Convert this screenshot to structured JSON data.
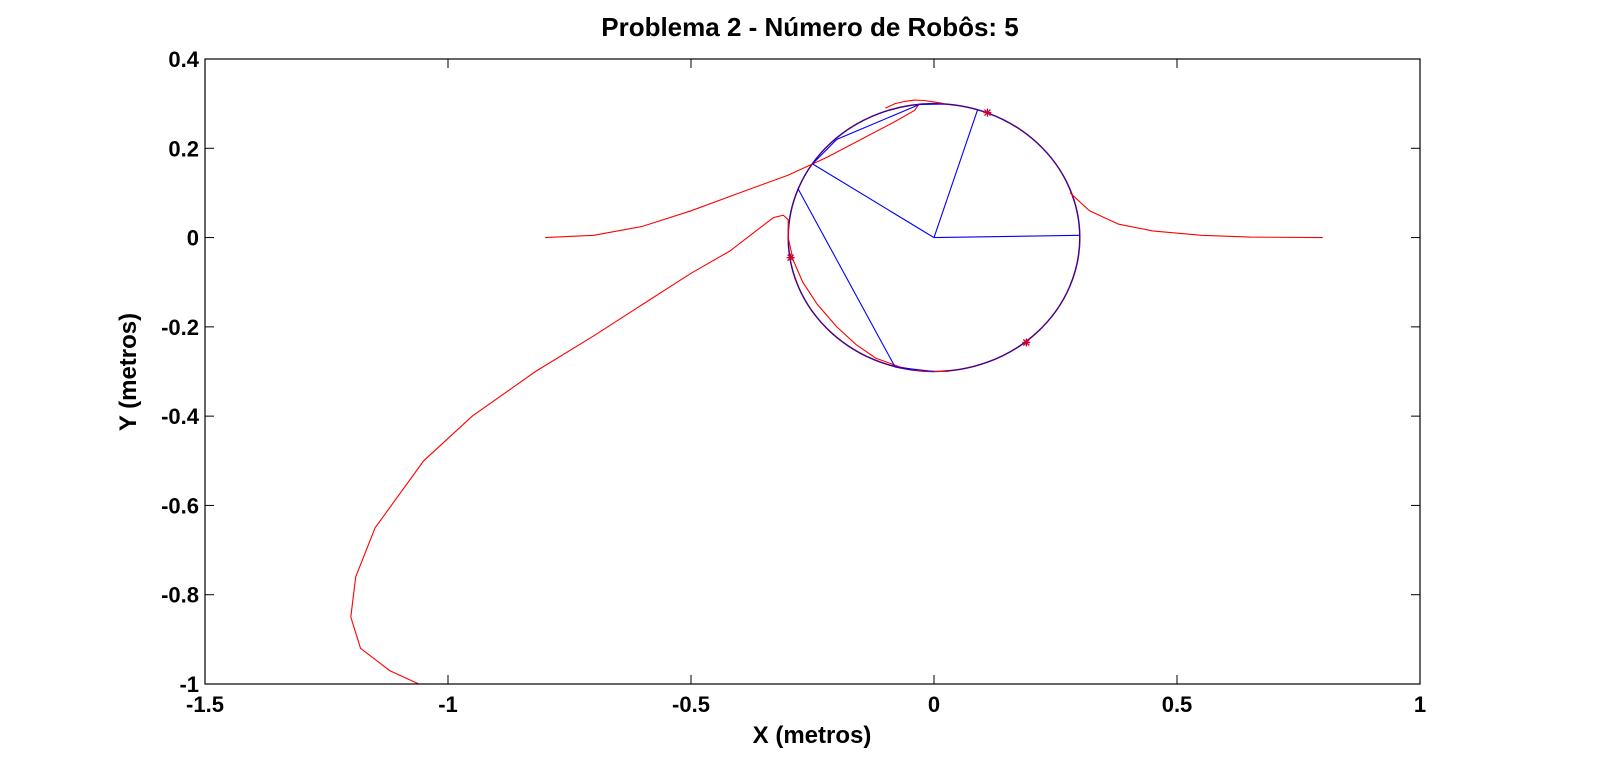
{
  "chart_data": {
    "type": "line",
    "title": "Problema 2 - Número de Robôs: 5",
    "xlabel": "X (metros)",
    "ylabel": "Y (metros)",
    "xlim": [
      -1.5,
      1
    ],
    "ylim": [
      -1,
      0.4
    ],
    "xticks": [
      -1.5,
      -1,
      -0.5,
      0,
      0.5,
      1
    ],
    "xtick_labels": [
      "-1.5",
      "-1",
      "-0.5",
      "0",
      "0.5",
      "1"
    ],
    "yticks": [
      -1,
      -0.8,
      -0.6,
      -0.4,
      -0.2,
      0,
      0.2,
      0.4
    ],
    "ytick_labels": [
      "-1",
      "-0.8",
      "-0.6",
      "-0.4",
      "-0.2",
      "0",
      "0.2",
      "0.4"
    ],
    "grid": false,
    "colors": {
      "trajectory": "#ff0000",
      "formation": "#0000ff",
      "circle": "#4b0082",
      "robot_marker": "#cc0033"
    },
    "circle": {
      "center": [
        0,
        0
      ],
      "radius": 0.3
    },
    "series": [
      {
        "color": "#ff0000",
        "x": [
          -0.8,
          -0.7,
          -0.6,
          -0.5,
          -0.4,
          -0.3,
          -0.22,
          -0.15,
          -0.08,
          -0.04,
          -0.03
        ],
        "y": [
          0.0,
          0.005,
          0.025,
          0.06,
          0.1,
          0.14,
          0.18,
          0.22,
          0.26,
          0.285,
          0.3
        ]
      },
      {
        "color": "#ff0000",
        "x": [
          0.28,
          0.32,
          0.38,
          0.45,
          0.55,
          0.65,
          0.8
        ],
        "y": [
          0.1,
          0.06,
          0.03,
          0.015,
          0.005,
          0.001,
          0.0
        ]
      },
      {
        "color": "#ff0000",
        "x": [
          -1.06,
          -1.12,
          -1.18,
          -1.2,
          -1.19,
          -1.15,
          -1.05,
          -0.95,
          -0.82,
          -0.7,
          -0.6,
          -0.5,
          -0.42,
          -0.36,
          -0.33,
          -0.31,
          -0.3,
          -0.3,
          -0.29,
          -0.27,
          -0.24,
          -0.2,
          -0.16,
          -0.12,
          -0.07,
          -0.02,
          0.03
        ],
        "y": [
          -1.0,
          -0.97,
          -0.92,
          -0.85,
          -0.76,
          -0.65,
          -0.5,
          -0.4,
          -0.3,
          -0.22,
          -0.15,
          -0.08,
          -0.03,
          0.02,
          0.045,
          0.05,
          0.04,
          0.0,
          -0.05,
          -0.1,
          -0.15,
          -0.2,
          -0.24,
          -0.27,
          -0.29,
          -0.3,
          -0.3
        ]
      },
      {
        "color": "#ff0000",
        "x": [
          -0.1,
          -0.08,
          -0.06,
          -0.04,
          -0.02,
          0.0,
          0.02
        ],
        "y": [
          0.29,
          0.3,
          0.305,
          0.308,
          0.307,
          0.304,
          0.3
        ]
      },
      {
        "color": "#0000ff",
        "x": [
          0,
          0.3
        ],
        "y": [
          0,
          0.005
        ]
      },
      {
        "color": "#0000ff",
        "x": [
          0,
          0.09
        ],
        "y": [
          0,
          0.287
        ]
      },
      {
        "color": "#0000ff",
        "x": [
          0,
          -0.25
        ],
        "y": [
          0,
          0.165
        ]
      },
      {
        "color": "#0000ff",
        "x": [
          0.02,
          -0.03,
          -0.2,
          -0.25
        ],
        "y": [
          0.299,
          0.298,
          0.22,
          0.165
        ]
      },
      {
        "color": "#0000ff",
        "x": [
          -0.28,
          -0.08,
          0.0
        ],
        "y": [
          0.11,
          -0.29,
          -0.3
        ]
      }
    ],
    "robots": {
      "x": [
        0.11,
        -0.295,
        0.19
      ],
      "y": [
        0.28,
        -0.045,
        -0.235
      ]
    }
  }
}
